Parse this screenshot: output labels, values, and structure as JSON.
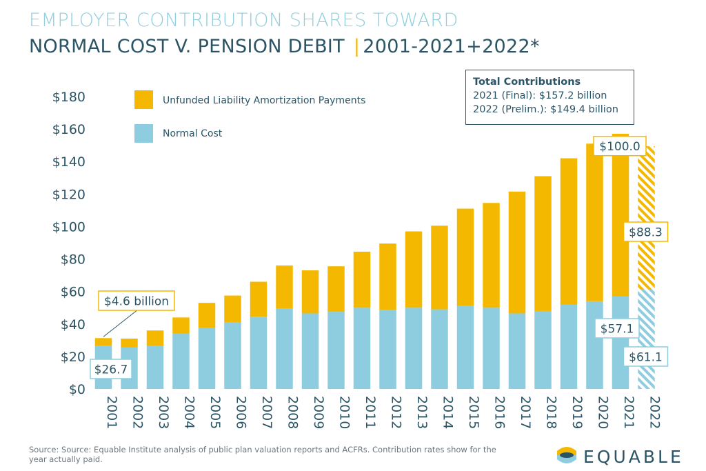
{
  "title_line1": "EMPLOYER CONTRIBUTION SHARES TOWARD",
  "title_line2_main": "NORMAL  COST V. PENSION DEBIT",
  "title_line2_sep": "|",
  "title_line2_years": "2001-2021+2022*",
  "source": "Source: Source: Equable Institute analysis of public plan valuation reports and ACFRs. Contribution rates show for the year actually paid.",
  "logo_text": "EQUABLE",
  "totals_box": {
    "heading": "Total Contributions",
    "line1": "2021 (Final): $157.2 billion",
    "line2": "2022 (Prelim.): $149.4 billion"
  },
  "colors": {
    "unfunded": "#f5b800",
    "normal": "#8ecde0",
    "text_dark": "#2b5566",
    "title_light": "#8fcfe0"
  },
  "chart_data": {
    "type": "bar",
    "stacked": true,
    "categories": [
      "2001",
      "2002",
      "2003",
      "2004",
      "2005",
      "2006",
      "2007",
      "2008",
      "2009",
      "2010",
      "2011",
      "2012",
      "2013",
      "2014",
      "2015",
      "2016",
      "2017",
      "2018",
      "2019",
      "2020",
      "2021",
      "2022"
    ],
    "series": [
      {
        "name": "Normal Cost",
        "values": [
          26.7,
          25.5,
          26.5,
          34,
          37.5,
          41,
          44.5,
          49.5,
          46.5,
          47.5,
          50,
          48.5,
          50,
          49,
          51,
          50,
          46.5,
          48,
          52,
          54,
          57.1,
          61.1
        ]
      },
      {
        "name": "Unfunded Liability Amortization Payments",
        "values": [
          4.6,
          5.5,
          9.5,
          10,
          15.5,
          16.5,
          21.5,
          26.5,
          26.5,
          28,
          34.5,
          41,
          47,
          51.5,
          60,
          64.5,
          75,
          83,
          90,
          97,
          100.0,
          88.3
        ]
      }
    ],
    "preliminary_categories": [
      "2022"
    ],
    "ylim": [
      0,
      180
    ],
    "yticks": [
      0,
      20,
      40,
      60,
      80,
      100,
      120,
      140,
      160,
      180
    ],
    "ytick_labels": [
      "$0",
      "$20",
      "$40",
      "$60",
      "$80",
      "$100",
      "$120",
      "$140",
      "$160",
      "$180"
    ],
    "legend_position": "top-left",
    "grid": false,
    "annotations": [
      {
        "text": "$4.6 billion",
        "category": "2001",
        "series": "Unfunded Liability Amortization Payments"
      },
      {
        "text": "$26.7",
        "category": "2001",
        "series": "Normal Cost"
      },
      {
        "text": "$100.0",
        "category": "2021",
        "series": "Unfunded Liability Amortization Payments"
      },
      {
        "text": "$88.3",
        "category": "2022",
        "series": "Unfunded Liability Amortization Payments"
      },
      {
        "text": "$57.1",
        "category": "2021",
        "series": "Normal Cost"
      },
      {
        "text": "$61.1",
        "category": "2022",
        "series": "Normal Cost"
      }
    ]
  }
}
